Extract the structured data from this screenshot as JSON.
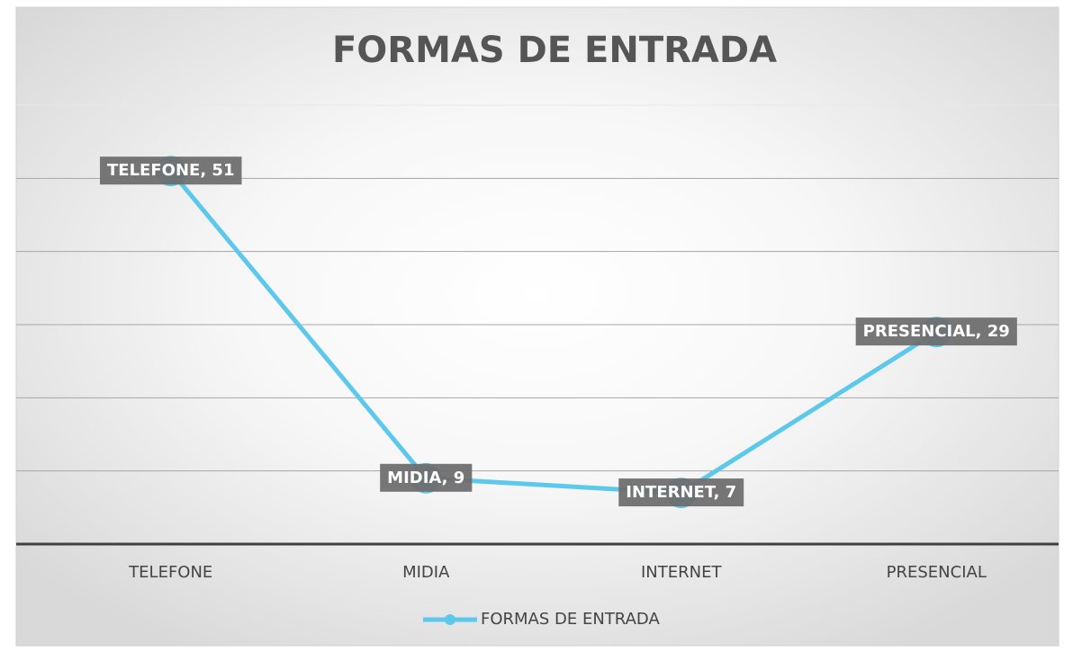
{
  "chart_data": {
    "type": "line",
    "title": "FORMAS DE ENTRADA",
    "categories": [
      "TELEFONE",
      "MIDIA",
      "INTERNET",
      "PRESENCIAL"
    ],
    "series": [
      {
        "name": "FORMAS DE ENTRADA",
        "color": "#5bc8ec",
        "values": [
          51,
          9,
          7,
          29
        ],
        "value_labels": [
          "TELEFONE, 51",
          "MIDIA, 9",
          "INTERNET, 7",
          "PRESENCIAL, 29"
        ]
      }
    ],
    "ylim": [
      0,
      60
    ],
    "yticks": [
      0,
      10,
      20,
      30,
      40,
      50,
      60
    ],
    "grid": true,
    "legend": "bottom"
  }
}
